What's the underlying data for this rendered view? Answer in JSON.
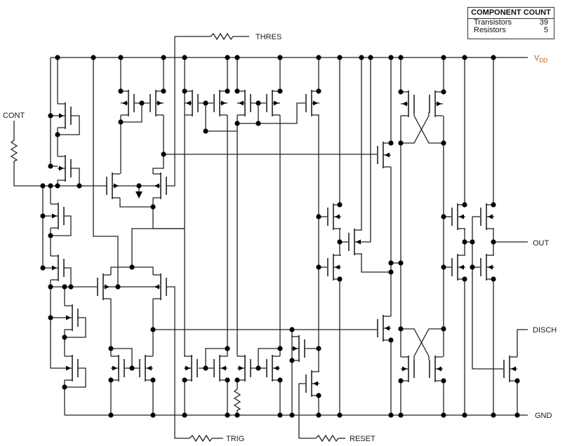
{
  "component_count": {
    "title": "COMPONENT COUNT",
    "rows": [
      {
        "label": "Transistors",
        "value": "39"
      },
      {
        "label": "Resistors",
        "value": "5"
      }
    ]
  },
  "pins": {
    "vdd": {
      "main": "V",
      "sub": "DD"
    },
    "gnd": "GND",
    "cont": "CONT",
    "thres": "THRES",
    "trig": "TRIG",
    "reset": "RESET",
    "out": "OUT",
    "disch": "DISCH"
  },
  "colors": {
    "wire": "#222222",
    "vdd_label": "#b85a10",
    "label": "#1a1a1a"
  }
}
